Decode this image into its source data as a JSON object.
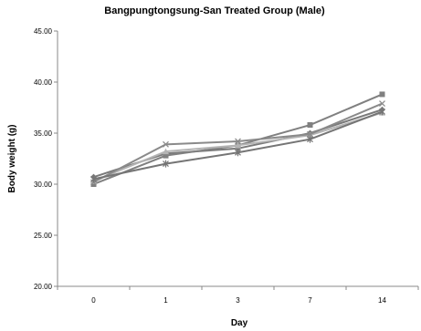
{
  "chart_data": {
    "type": "line",
    "title": "Bangpungtongsung-San Treated Group (Male)",
    "xlabel": "Day",
    "ylabel": "Body weight (g)",
    "categories": [
      "0",
      "1",
      "3",
      "7",
      "14"
    ],
    "ylim": [
      20,
      45
    ],
    "yticks": [
      "20.00",
      "25.00",
      "30.00",
      "35.00",
      "40.00",
      "45.00"
    ],
    "grid": false,
    "legend": "none",
    "series": [
      {
        "values": [
          30.7,
          33.0,
          33.5,
          35.0,
          37.3
        ],
        "color": "#7a7a7a",
        "marker": "diamond"
      },
      {
        "values": [
          30.0,
          32.8,
          33.8,
          35.8,
          38.8
        ],
        "color": "#808080",
        "marker": "square"
      },
      {
        "values": [
          30.3,
          33.2,
          33.8,
          34.8,
          37.0
        ],
        "color": "#b4b4b4",
        "marker": "triangle"
      },
      {
        "values": [
          30.2,
          33.9,
          34.2,
          34.9,
          37.9
        ],
        "color": "#8a8a8a",
        "marker": "x"
      },
      {
        "values": [
          30.5,
          32.0,
          33.1,
          34.4,
          37.1
        ],
        "color": "#757575",
        "marker": "star"
      }
    ]
  }
}
